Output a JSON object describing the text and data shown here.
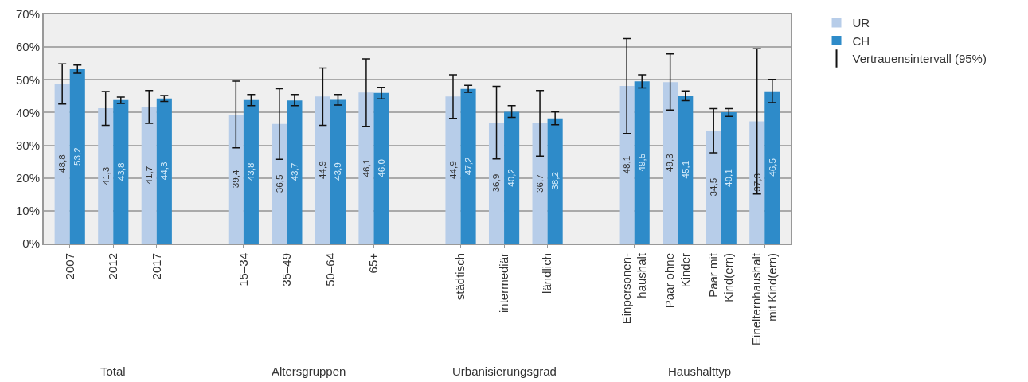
{
  "chart_data": {
    "type": "bar",
    "categories": [
      "2007",
      "2012",
      "2017",
      null,
      "15–34",
      "35–49",
      "50–64",
      "65+",
      null,
      "städtisch",
      "intermediär",
      "ländlich",
      null,
      "Einpersonen-\nhaushalt",
      "Paar ohne\nKinder",
      "Paar mit\nKind(ern)",
      "Einelternhaushalt\nmit Kind(ern)"
    ],
    "series": [
      {
        "name": "UR",
        "color": "#b7cde9",
        "values": [
          48.8,
          41.3,
          41.7,
          null,
          39.4,
          36.5,
          44.9,
          46.1,
          null,
          44.9,
          36.9,
          36.7,
          null,
          48.1,
          49.3,
          34.5,
          37.3
        ],
        "value_labels": [
          "48,8",
          "41,3",
          "41,7",
          null,
          "39,4",
          "36,5",
          "44,9",
          "46,1",
          null,
          "44,9",
          "36,9",
          "36,7",
          null,
          "48,1",
          "49,3",
          "34,5",
          "37,3"
        ],
        "errors": [
          [
            42.6,
            54.9
          ],
          [
            36.1,
            46.4
          ],
          [
            36.7,
            46.7
          ],
          null,
          [
            29.2,
            49.6
          ],
          [
            25.7,
            47.3
          ],
          [
            36.1,
            53.6
          ],
          [
            35.8,
            56.4
          ],
          null,
          [
            38.2,
            51.5
          ],
          [
            25.8,
            48.0
          ],
          [
            26.7,
            46.7
          ],
          null,
          [
            33.6,
            62.6
          ],
          [
            40.8,
            57.9
          ],
          [
            27.7,
            41.2
          ],
          [
            15.1,
            59.5
          ]
        ]
      },
      {
        "name": "CH",
        "color": "#2e8bc9",
        "values": [
          53.2,
          43.8,
          44.3,
          null,
          43.8,
          43.7,
          43.9,
          46.0,
          null,
          47.2,
          40.2,
          38.2,
          null,
          49.5,
          45.1,
          40.1,
          46.5
        ],
        "value_labels": [
          "53,2",
          "43,8",
          "44,3",
          null,
          "43,8",
          "43,7",
          "43,9",
          "46,0",
          null,
          "47,2",
          "40,2",
          "38,2",
          null,
          "49,5",
          "45,1",
          "40,1",
          "46,5"
        ],
        "errors": [
          [
            52.0,
            54.5
          ],
          [
            42.8,
            44.7
          ],
          [
            43.4,
            45.2
          ],
          null,
          [
            42.1,
            45.5
          ],
          [
            42.1,
            45.5
          ],
          [
            42.3,
            45.5
          ],
          [
            44.2,
            47.7
          ],
          null,
          [
            46.2,
            48.3
          ],
          [
            38.5,
            42.1
          ],
          [
            36.3,
            40.2
          ],
          null,
          [
            47.5,
            51.5
          ],
          [
            43.6,
            46.6
          ],
          [
            38.8,
            41.2
          ],
          [
            43.0,
            50.1
          ]
        ]
      }
    ],
    "ylim": [
      0,
      70
    ],
    "yticks": [
      {
        "value": 0,
        "label": "0%"
      },
      {
        "value": 10,
        "label": "10%"
      },
      {
        "value": 20,
        "label": "20%"
      },
      {
        "value": 30,
        "label": "30%"
      },
      {
        "value": 40,
        "label": "40%"
      },
      {
        "value": 50,
        "label": "50%"
      },
      {
        "value": 60,
        "label": "60%"
      },
      {
        "value": 70,
        "label": "70%"
      }
    ],
    "grid": "y",
    "legend": "top right",
    "annotations": [
      "Total",
      "Altersgruppen",
      "Urbanisierungsgrad",
      "Haushalttyp",
      "Vertrauensintervall (95%)"
    ]
  }
}
